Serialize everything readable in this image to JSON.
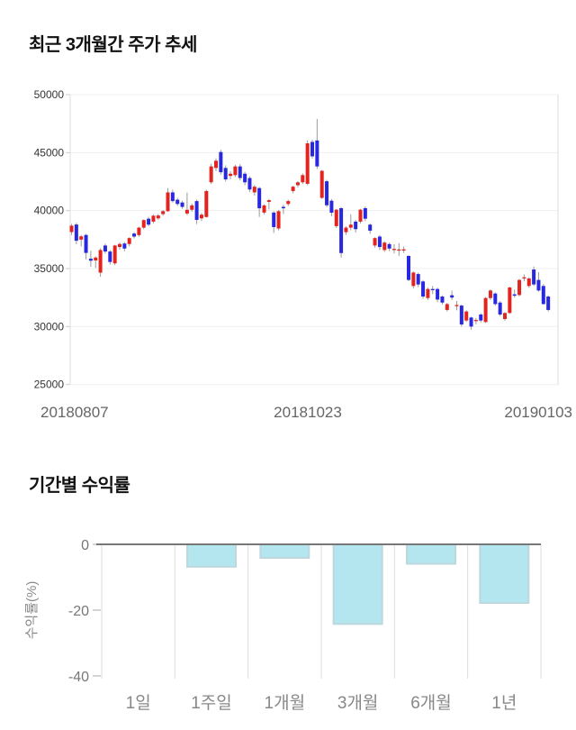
{
  "chart_data": [
    {
      "type": "candlestick",
      "title": "최근 3개월간 주가 추세",
      "x_tick_labels": [
        "20180807",
        "20181023",
        "20190103"
      ],
      "y_ticks": [
        50000,
        45000,
        40000,
        35000,
        30000,
        25000
      ],
      "ylim": [
        25000,
        50000
      ],
      "grid": true,
      "colors": {
        "up": "#e3231e",
        "down": "#2828e0",
        "wick": "#9a9a9a",
        "grid_line": "#efefef",
        "plot_border": "#dddddd",
        "y_tick_text": "#333333",
        "x_tick_text": "#666666"
      },
      "candles_ohlc": [
        [
          38150,
          38850,
          37900,
          38700
        ],
        [
          38800,
          38950,
          37100,
          37400
        ],
        [
          37500,
          37900,
          36900,
          37780
        ],
        [
          37900,
          37990,
          35800,
          36350
        ],
        [
          35850,
          36550,
          35150,
          35680
        ],
        [
          35700,
          36050,
          35050,
          35950
        ],
        [
          34650,
          36750,
          34300,
          36600
        ],
        [
          36990,
          37150,
          36300,
          36470
        ],
        [
          36470,
          36600,
          35350,
          35570
        ],
        [
          35450,
          37050,
          35300,
          36990
        ],
        [
          36860,
          37250,
          36650,
          37120
        ],
        [
          37160,
          37300,
          36500,
          36730
        ],
        [
          37120,
          37700,
          36900,
          37630
        ],
        [
          38020,
          38150,
          37600,
          37760
        ],
        [
          37890,
          38600,
          37750,
          38530
        ],
        [
          38530,
          39250,
          38400,
          39180
        ],
        [
          39300,
          39450,
          38650,
          38790
        ],
        [
          39050,
          39650,
          38900,
          39560
        ],
        [
          39330,
          39700,
          39200,
          39580
        ],
        [
          39700,
          40050,
          39550,
          39950
        ],
        [
          39950,
          41940,
          39900,
          41570
        ],
        [
          41570,
          41800,
          40700,
          40820
        ],
        [
          40940,
          41100,
          40400,
          40570
        ],
        [
          40700,
          40850,
          40150,
          40320
        ],
        [
          39750,
          41550,
          39600,
          40070
        ],
        [
          40070,
          40600,
          39900,
          40450
        ],
        [
          40820,
          40950,
          38830,
          39200
        ],
        [
          39330,
          39800,
          39100,
          39650
        ],
        [
          39450,
          41800,
          39400,
          41690
        ],
        [
          42440,
          44050,
          42300,
          43810
        ],
        [
          43680,
          44500,
          43400,
          44300
        ],
        [
          45050,
          45250,
          43100,
          43310
        ],
        [
          43680,
          43900,
          42500,
          42690
        ],
        [
          42990,
          43400,
          42700,
          43180
        ],
        [
          43060,
          43950,
          42900,
          43810
        ],
        [
          43810,
          44000,
          42600,
          42810
        ],
        [
          43180,
          43350,
          42200,
          42440
        ],
        [
          42810,
          42950,
          41600,
          41820
        ],
        [
          41570,
          42200,
          41300,
          42060
        ],
        [
          41940,
          42050,
          39450,
          40200
        ],
        [
          39830,
          40550,
          39650,
          40450
        ],
        [
          40750,
          41000,
          40100,
          40900
        ],
        [
          39830,
          39950,
          38080,
          38580
        ],
        [
          38460,
          40050,
          38300,
          39950
        ],
        [
          40320,
          40500,
          39700,
          40200
        ],
        [
          40570,
          40950,
          40400,
          40820
        ],
        [
          41690,
          42150,
          41500,
          42060
        ],
        [
          42190,
          42550,
          42000,
          42440
        ],
        [
          42440,
          43200,
          42300,
          43060
        ],
        [
          42310,
          46050,
          42200,
          45800
        ],
        [
          45920,
          46100,
          44500,
          44680
        ],
        [
          46050,
          47900,
          43600,
          43810
        ],
        [
          41100,
          43500,
          41000,
          43430
        ],
        [
          42530,
          42650,
          40300,
          40460
        ],
        [
          40850,
          41000,
          39500,
          39820
        ],
        [
          38660,
          40150,
          38500,
          40080
        ],
        [
          40210,
          40300,
          35950,
          36340
        ],
        [
          38140,
          38650,
          37900,
          38530
        ],
        [
          38530,
          39690,
          38300,
          38790
        ],
        [
          39050,
          39200,
          38100,
          38400
        ],
        [
          39050,
          40150,
          38900,
          40080
        ],
        [
          40210,
          40350,
          39100,
          39300
        ],
        [
          38790,
          38900,
          38000,
          38270
        ],
        [
          36990,
          37700,
          36800,
          37630
        ],
        [
          37760,
          37900,
          36600,
          36860
        ],
        [
          36600,
          37350,
          36450,
          37240
        ],
        [
          37110,
          37250,
          36500,
          36730
        ],
        [
          36600,
          37100,
          36300,
          36700
        ],
        [
          36550,
          37200,
          36100,
          36650
        ],
        [
          36600,
          36900,
          36350,
          36660
        ],
        [
          36090,
          36150,
          33900,
          34020
        ],
        [
          33500,
          34750,
          33300,
          34660
        ],
        [
          34530,
          34650,
          33400,
          33630
        ],
        [
          33890,
          34000,
          32400,
          32590
        ],
        [
          32460,
          33350,
          32300,
          33240
        ],
        [
          33240,
          33500,
          32800,
          33140
        ],
        [
          33240,
          33350,
          32100,
          32330
        ],
        [
          32590,
          32700,
          31900,
          32070
        ],
        [
          31430,
          32050,
          31300,
          31940
        ],
        [
          32700,
          33100,
          32300,
          32500
        ],
        [
          31760,
          32200,
          31400,
          31860
        ],
        [
          31810,
          31900,
          30000,
          30180
        ],
        [
          30520,
          31400,
          30400,
          31300
        ],
        [
          30780,
          30850,
          29740,
          30000
        ],
        [
          30470,
          30750,
          30200,
          30570
        ],
        [
          31040,
          31150,
          30350,
          30520
        ],
        [
          30390,
          32550,
          30300,
          32460
        ],
        [
          32460,
          33200,
          32300,
          33110
        ],
        [
          32850,
          32950,
          31800,
          31940
        ],
        [
          32070,
          32200,
          30900,
          31040
        ],
        [
          30650,
          31250,
          30500,
          31170
        ],
        [
          31170,
          33450,
          31100,
          33370
        ],
        [
          32780,
          33200,
          32500,
          32660
        ],
        [
          32720,
          34100,
          32600,
          34020
        ],
        [
          34150,
          34500,
          33900,
          34250
        ],
        [
          33500,
          34250,
          33350,
          34150
        ],
        [
          34920,
          35180,
          33500,
          33630
        ],
        [
          34020,
          34700,
          33000,
          33110
        ],
        [
          33500,
          33650,
          31900,
          31940
        ],
        [
          32590,
          32700,
          31300,
          31430
        ]
      ]
    },
    {
      "type": "bar",
      "title": "기간별 수익률",
      "ylabel": "수익률(%)",
      "categories": [
        "1일",
        "1주일",
        "1개월",
        "3개월",
        "6개월",
        "1년"
      ],
      "values": [
        0,
        -6.8,
        -4.1,
        -24.2,
        -5.9,
        -17.8
      ],
      "y_ticks": [
        0,
        -20,
        -40
      ],
      "ylim": [
        -40,
        0
      ],
      "grid": true,
      "legend_position": "none",
      "colors": {
        "bar_fill": "#b4e6f0",
        "bar_border": "#bcd7dd",
        "zero_line": "#777777",
        "separator": "#dddddd",
        "tick_text": "#777777",
        "category_text": "#888888",
        "ylabel_text": "#888888"
      }
    }
  ]
}
